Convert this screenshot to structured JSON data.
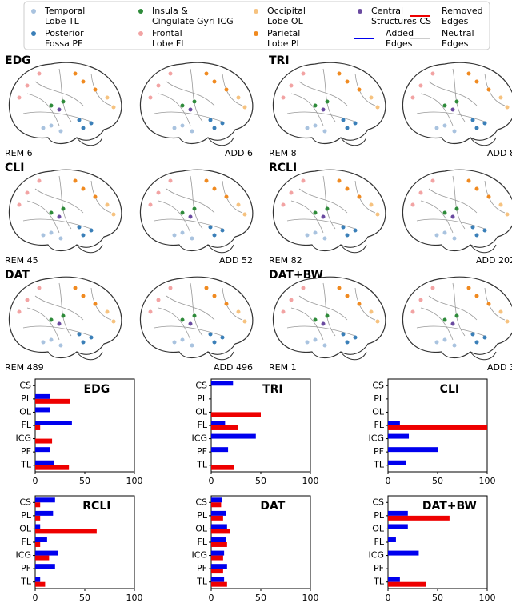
{
  "legend": [
    {
      "lines": [
        "Temporal",
        "Lobe TL"
      ],
      "color": "#a9c3df",
      "kind": "dot"
    },
    {
      "lines": [
        "Posterior",
        "Fossa PF"
      ],
      "color": "#3a7fb8",
      "kind": "dot"
    },
    {
      "lines": [
        "Insula &",
        "Cingulate Gyri ICG"
      ],
      "color": "#2e8b3a",
      "kind": "dot"
    },
    {
      "lines": [
        "Frontal",
        "Lobe FL"
      ],
      "color": "#f2a3a3",
      "kind": "dot"
    },
    {
      "lines": [
        "Occipital",
        "Lobe OL"
      ],
      "color": "#f6c27f",
      "kind": "dot"
    },
    {
      "lines": [
        "Parietal",
        "Lobe PL"
      ],
      "color": "#f08a20",
      "kind": "dot"
    },
    {
      "lines": [
        "Central",
        "Structures CS"
      ],
      "color": "#6a4aa0",
      "kind": "dot"
    },
    {
      "lines": [
        "Added",
        "Edges"
      ],
      "color": "#0000ee",
      "kind": "line"
    },
    {
      "lines": [
        "Removed",
        "Edges"
      ],
      "color": "#ee0000",
      "kind": "line"
    },
    {
      "lines": [
        "Neutral",
        "Edges"
      ],
      "color": "#cccccc",
      "kind": "line"
    }
  ],
  "panels": [
    {
      "title": "EDG",
      "removed": "REM 6",
      "added": "ADD 6"
    },
    {
      "title": "TRI",
      "removed": "REM 8",
      "added": "ADD 8"
    },
    {
      "title": "CLI",
      "removed": "REM 45",
      "added": "ADD 52"
    },
    {
      "title": "RCLI",
      "removed": "REM 82",
      "added": "ADD 202"
    },
    {
      "title": "DAT",
      "removed": "REM 489",
      "added": "ADD 496"
    },
    {
      "title": "DAT+BW",
      "removed": "REM 1",
      "added": "ADD 3"
    }
  ],
  "chart_data": [
    {
      "type": "bar",
      "orientation": "horizontal",
      "title": "EDG",
      "categories": [
        "CS",
        "PL",
        "OL",
        "FL",
        "ICG",
        "PF",
        "TL"
      ],
      "series": [
        {
          "color": "#0000ee",
          "values": [
            0,
            15,
            15,
            37,
            0,
            15,
            19
          ]
        },
        {
          "color": "#ee0000",
          "values": [
            0,
            35,
            0,
            5,
            17,
            0,
            34
          ]
        }
      ],
      "xlim": [
        0,
        100
      ],
      "xticks": [
        0,
        50,
        100
      ]
    },
    {
      "type": "bar",
      "orientation": "horizontal",
      "title": "TRI",
      "categories": [
        "CS",
        "PL",
        "OL",
        "FL",
        "ICG",
        "PF",
        "TL"
      ],
      "series": [
        {
          "color": "#0000ee",
          "values": [
            22,
            0,
            0,
            14,
            45,
            17,
            0
          ]
        },
        {
          "color": "#ee0000",
          "values": [
            0,
            0,
            50,
            27,
            0,
            0,
            23
          ]
        }
      ],
      "xlim": [
        0,
        100
      ],
      "xticks": [
        0,
        50,
        100
      ]
    },
    {
      "type": "bar",
      "orientation": "horizontal",
      "title": "CLI",
      "categories": [
        "CS",
        "PL",
        "OL",
        "FL",
        "ICG",
        "PF",
        "TL"
      ],
      "series": [
        {
          "color": "#0000ee",
          "values": [
            0,
            0,
            0,
            12,
            21,
            50,
            18
          ]
        },
        {
          "color": "#ee0000",
          "values": [
            0,
            0,
            0,
            100,
            0,
            0,
            0
          ]
        }
      ],
      "xlim": [
        0,
        100
      ],
      "xticks": [
        0,
        50,
        100
      ]
    },
    {
      "type": "bar",
      "orientation": "horizontal",
      "title": "RCLI",
      "categories": [
        "CS",
        "PL",
        "OL",
        "FL",
        "ICG",
        "PF",
        "TL"
      ],
      "series": [
        {
          "color": "#0000ee",
          "values": [
            20,
            18,
            5,
            12,
            23,
            20,
            5
          ]
        },
        {
          "color": "#ee0000",
          "values": [
            5,
            5,
            62,
            5,
            14,
            0,
            10
          ]
        }
      ],
      "xlim": [
        0,
        100
      ],
      "xticks": [
        0,
        50,
        100
      ]
    },
    {
      "type": "bar",
      "orientation": "horizontal",
      "title": "DAT",
      "categories": [
        "CS",
        "PL",
        "OL",
        "FL",
        "ICG",
        "PF",
        "TL"
      ],
      "series": [
        {
          "color": "#0000ee",
          "values": [
            11,
            15,
            16,
            15,
            13,
            16,
            13
          ]
        },
        {
          "color": "#ee0000",
          "values": [
            10,
            12,
            19,
            16,
            12,
            12,
            16
          ]
        }
      ],
      "xlim": [
        0,
        100
      ],
      "xticks": [
        0,
        50,
        100
      ]
    },
    {
      "type": "bar",
      "orientation": "horizontal",
      "title": "DAT+BW",
      "categories": [
        "CS",
        "PL",
        "OL",
        "FL",
        "ICG",
        "PF",
        "TL"
      ],
      "series": [
        {
          "color": "#0000ee",
          "values": [
            0,
            20,
            20,
            8,
            31,
            0,
            12
          ]
        },
        {
          "color": "#ee0000",
          "values": [
            0,
            62,
            0,
            0,
            0,
            0,
            38
          ]
        }
      ],
      "xlim": [
        0,
        100
      ],
      "xticks": [
        0,
        50,
        100
      ]
    }
  ]
}
